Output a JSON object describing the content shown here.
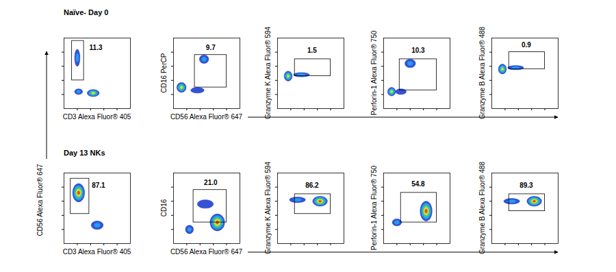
{
  "chart_data": [
    {
      "type": "density",
      "title": "Naïve- Day 0",
      "xlabel": "CD3 Alexa Fluor® 405",
      "xlim": [
        0,
        5
      ],
      "ylim": [
        0,
        5
      ],
      "xticks": [
        1,
        2,
        3,
        4
      ],
      "yticks": [
        1,
        2,
        3,
        4
      ],
      "tick_labels": false,
      "populations": [
        {
          "x": 1.0,
          "y": 3.6,
          "sx": 0.2,
          "sy": 0.6,
          "density": 0.4
        },
        {
          "x": 1.1,
          "y": 1.2,
          "sx": 0.3,
          "sy": 0.2,
          "density": 0.3
        },
        {
          "x": 2.2,
          "y": 1.1,
          "sx": 0.45,
          "sy": 0.25,
          "density": 0.7
        }
      ],
      "gate": {
        "x": [
          0.6,
          1.5
        ],
        "y": [
          2.0,
          4.8
        ],
        "percent": {
          "value": 11.3,
          "label": "11.3",
          "x": 2.4,
          "y": 4.3
        }
      }
    },
    {
      "type": "density",
      "xlabel": "CD56 Alexa Fluor® 647",
      "ylabel": "CD16 PerCP",
      "xlim": [
        0,
        5
      ],
      "ylim": [
        0,
        5
      ],
      "xticks": [
        1,
        2,
        3,
        4
      ],
      "yticks": [
        1,
        2,
        3,
        4
      ],
      "tick_labels": false,
      "populations": [
        {
          "x": 0.6,
          "y": 1.5,
          "sx": 0.35,
          "sy": 0.35,
          "density": 0.7
        },
        {
          "x": 2.3,
          "y": 3.5,
          "sx": 0.35,
          "sy": 0.3,
          "density": 0.4
        },
        {
          "x": 1.8,
          "y": 1.3,
          "sx": 0.5,
          "sy": 0.2,
          "density": 0.2
        }
      ],
      "gate": {
        "x": [
          1.6,
          4.0
        ],
        "y": [
          1.5,
          3.8
        ],
        "percent": {
          "value": 9.7,
          "label": "9.7",
          "x": 2.8,
          "y": 4.3
        }
      }
    },
    {
      "type": "density",
      "ylabel": "Granzyme K Alexa Fluor® 594",
      "xlim": [
        0,
        5
      ],
      "ylim": [
        0,
        5
      ],
      "xticks": [
        1,
        2,
        3,
        4
      ],
      "yticks": [
        1,
        2,
        3,
        4
      ],
      "tick_labels": false,
      "populations": [
        {
          "x": 0.8,
          "y": 2.3,
          "sx": 0.3,
          "sy": 0.35,
          "density": 0.7
        },
        {
          "x": 1.8,
          "y": 2.4,
          "sx": 0.6,
          "sy": 0.15,
          "density": 0.3
        }
      ],
      "gate": {
        "x": [
          1.3,
          4.0
        ],
        "y": [
          2.3,
          3.5
        ],
        "percent": {
          "value": 1.5,
          "label": "1.5",
          "x": 2.6,
          "y": 4.1
        }
      }
    },
    {
      "type": "density",
      "ylabel": "Perforin-1 Alexa Fluor® 750",
      "xlim": [
        0,
        5
      ],
      "ylim": [
        0,
        5
      ],
      "xticks": [
        1,
        2,
        3,
        4
      ],
      "yticks": [
        1,
        2,
        3,
        4
      ],
      "tick_labels": false,
      "populations": [
        {
          "x": 0.6,
          "y": 1.2,
          "sx": 0.3,
          "sy": 0.3,
          "density": 0.7
        },
        {
          "x": 2.0,
          "y": 3.2,
          "sx": 0.4,
          "sy": 0.3,
          "density": 0.4
        },
        {
          "x": 1.3,
          "y": 1.2,
          "sx": 0.4,
          "sy": 0.2,
          "density": 0.2
        }
      ],
      "gate": {
        "x": [
          1.2,
          4.0
        ],
        "y": [
          1.3,
          3.5
        ],
        "percent": {
          "value": 10.3,
          "label": "10.3",
          "x": 2.6,
          "y": 4.1
        }
      }
    },
    {
      "type": "density",
      "ylabel": "Granzyme B Alexa Fluor® 488",
      "xlim": [
        0,
        5
      ],
      "ylim": [
        0,
        5
      ],
      "xticks": [
        1,
        2,
        3,
        4
      ],
      "yticks": [
        1,
        2,
        3,
        4
      ],
      "tick_labels": false,
      "populations": [
        {
          "x": 0.8,
          "y": 2.8,
          "sx": 0.3,
          "sy": 0.35,
          "density": 0.7
        },
        {
          "x": 1.8,
          "y": 2.9,
          "sx": 0.6,
          "sy": 0.15,
          "density": 0.3
        }
      ],
      "gate": {
        "x": [
          1.3,
          4.0
        ],
        "y": [
          2.8,
          4.0
        ],
        "percent": {
          "value": 0.9,
          "label": "0.9",
          "x": 2.6,
          "y": 4.5
        }
      }
    },
    {
      "type": "density",
      "title": "Day 13 NKs",
      "xlabel": "CD3 Alexa Fluor® 405",
      "ylabel": "CD56 Alexa Fluor® 647",
      "xlim": [
        0,
        5
      ],
      "ylim": [
        0,
        5
      ],
      "xticks": [
        1,
        2,
        3,
        4
      ],
      "yticks": [
        1,
        2,
        3,
        4
      ],
      "tick_labels": false,
      "populations": [
        {
          "x": 1.1,
          "y": 3.6,
          "sx": 0.45,
          "sy": 0.65,
          "density": 1.0
        },
        {
          "x": 2.5,
          "y": 1.3,
          "sx": 0.45,
          "sy": 0.3,
          "density": 0.4
        }
      ],
      "gate": {
        "x": [
          0.5,
          1.9
        ],
        "y": [
          2.1,
          4.6
        ],
        "percent": {
          "value": 87.1,
          "label": "87.1",
          "x": 2.6,
          "y": 4.1
        }
      }
    },
    {
      "type": "density",
      "xlabel": "CD56 Alexa Fluor® 647",
      "ylabel": "CD16",
      "xlim": [
        0,
        5
      ],
      "ylim": [
        0,
        5
      ],
      "xticks": [
        1,
        2,
        3,
        4
      ],
      "yticks": [
        1,
        2,
        3,
        4
      ],
      "tick_labels": false,
      "populations": [
        {
          "x": 3.3,
          "y": 1.5,
          "sx": 0.55,
          "sy": 0.6,
          "density": 1.0
        },
        {
          "x": 1.2,
          "y": 1.0,
          "sx": 0.3,
          "sy": 0.3,
          "density": 0.3
        },
        {
          "x": 2.4,
          "y": 2.8,
          "sx": 0.6,
          "sy": 0.3,
          "density": 0.2
        }
      ],
      "gate": {
        "x": [
          1.5,
          4.0
        ],
        "y": [
          1.5,
          3.8
        ],
        "percent": {
          "value": 21.0,
          "label": "21.0",
          "x": 2.8,
          "y": 4.3
        }
      }
    },
    {
      "type": "density",
      "ylabel": "Granzyme K Alexa Fluor® 594",
      "xlim": [
        0,
        5
      ],
      "ylim": [
        0,
        5
      ],
      "xticks": [
        1,
        2,
        3,
        4
      ],
      "yticks": [
        1,
        2,
        3,
        4
      ],
      "tick_labels": false,
      "populations": [
        {
          "x": 3.2,
          "y": 3.0,
          "sx": 0.55,
          "sy": 0.35,
          "density": 1.0
        },
        {
          "x": 1.5,
          "y": 3.1,
          "sx": 0.6,
          "sy": 0.2,
          "density": 0.3
        }
      ],
      "gate": {
        "x": [
          1.3,
          4.0
        ],
        "y": [
          2.1,
          3.5
        ],
        "percent": {
          "value": 86.2,
          "label": "86.2",
          "x": 2.6,
          "y": 4.1
        }
      }
    },
    {
      "type": "density",
      "ylabel": "Perforin-1 Alexa Fluor® 750",
      "xlim": [
        0,
        5
      ],
      "ylim": [
        0,
        5
      ],
      "xticks": [
        1,
        2,
        3,
        4
      ],
      "yticks": [
        1,
        2,
        3,
        4
      ],
      "tick_labels": false,
      "populations": [
        {
          "x": 3.2,
          "y": 2.3,
          "sx": 0.45,
          "sy": 0.7,
          "density": 1.0
        },
        {
          "x": 1.0,
          "y": 1.5,
          "sx": 0.35,
          "sy": 0.25,
          "density": 0.4
        }
      ],
      "gate": {
        "x": [
          1.3,
          4.0
        ],
        "y": [
          1.5,
          3.6
        ],
        "percent": {
          "value": 54.8,
          "label": "54.8",
          "x": 2.6,
          "y": 4.2
        }
      }
    },
    {
      "type": "density",
      "ylabel": "Granzyme B Alexa Fluor® 488",
      "xlim": [
        0,
        5
      ],
      "ylim": [
        0,
        5
      ],
      "xticks": [
        1,
        2,
        3,
        4
      ],
      "yticks": [
        1,
        2,
        3,
        4
      ],
      "tick_labels": false,
      "populations": [
        {
          "x": 3.2,
          "y": 3.0,
          "sx": 0.55,
          "sy": 0.35,
          "density": 1.0
        },
        {
          "x": 1.5,
          "y": 3.0,
          "sx": 0.6,
          "sy": 0.2,
          "density": 0.3
        }
      ],
      "gate": {
        "x": [
          1.3,
          4.0
        ],
        "y": [
          2.3,
          3.5
        ],
        "percent": {
          "value": 89.3,
          "label": "89.3",
          "x": 2.6,
          "y": 4.1
        }
      }
    }
  ]
}
